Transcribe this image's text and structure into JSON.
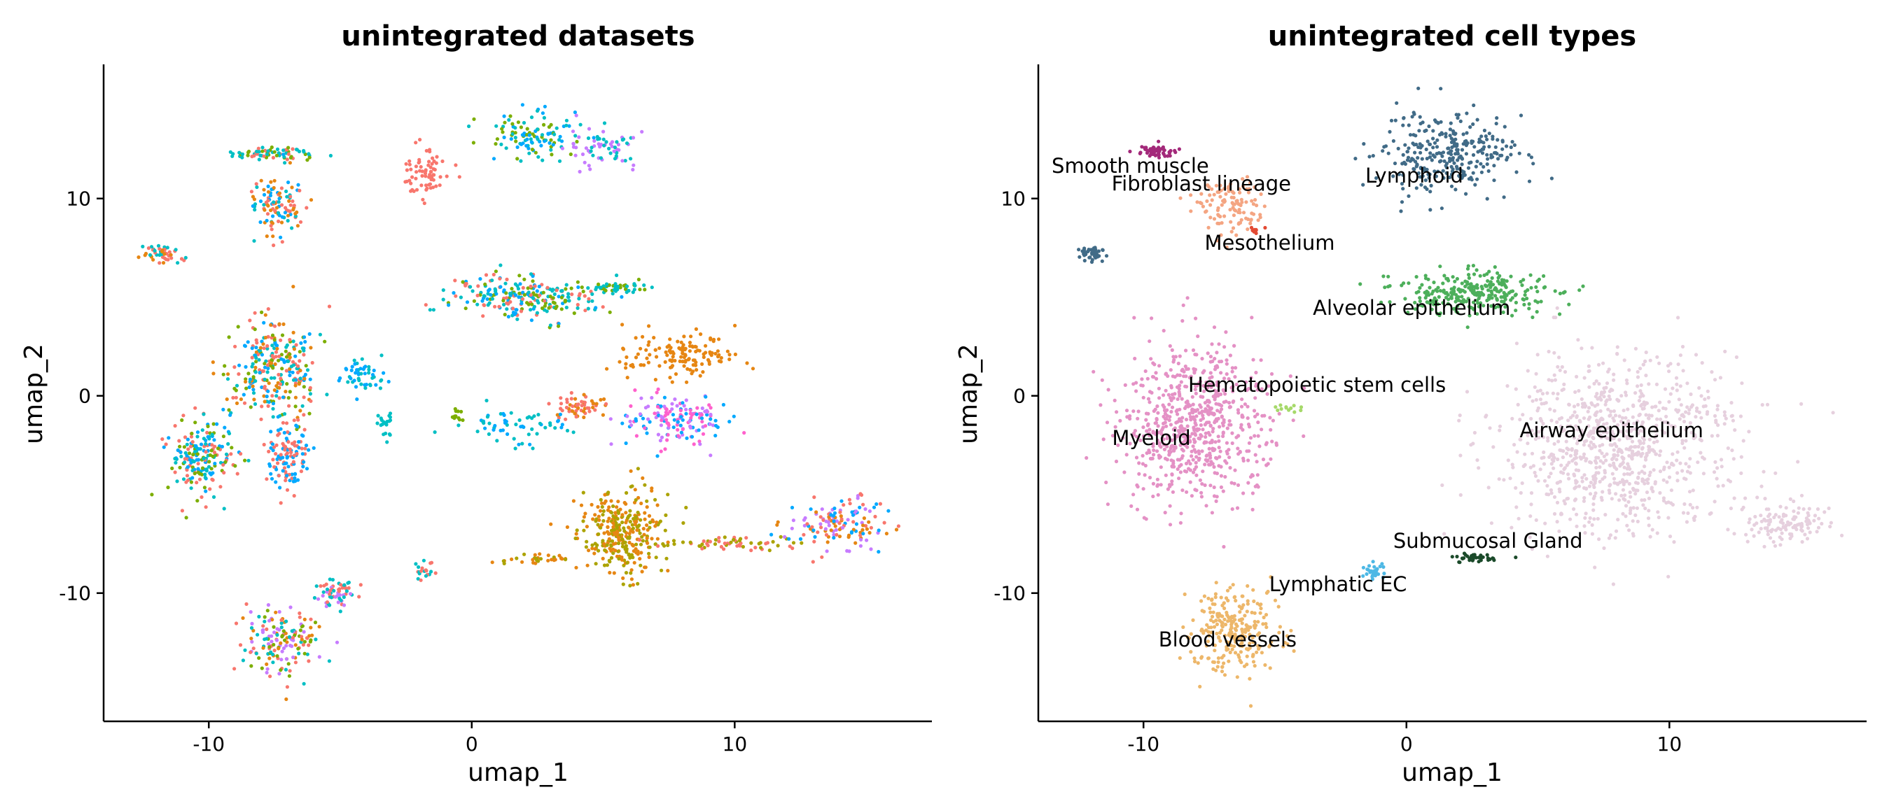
{
  "chart_data": [
    {
      "type": "scatter",
      "title": "unintegrated datasets",
      "xlabel": "umap_1",
      "ylabel": "umap_2",
      "xlim": [
        -14,
        17.5
      ],
      "ylim": [
        -16.5,
        16.8
      ],
      "x_ticks": [
        -10,
        0,
        10
      ],
      "y_ticks": [
        -10,
        0,
        10
      ],
      "x_tick_labels": [
        "-10",
        "0",
        "10"
      ],
      "y_tick_labels": [
        "-10",
        "0",
        "10"
      ],
      "grid": false,
      "legend": "none",
      "palette": [
        "#F8766D",
        "#00BFC4",
        "#00A9FF",
        "#7CAE00",
        "#C77CFF",
        "#E68613",
        "#ABA300",
        "#FF61CC",
        "#0CB702",
        "#00B8E7"
      ],
      "clusters": [
        {
          "x": -7.5,
          "y": 12.3,
          "sx": 1.1,
          "sy": 0.25,
          "n": 70,
          "colors": [
            0,
            3,
            1
          ]
        },
        {
          "x": -7.4,
          "y": 9.8,
          "sx": 0.8,
          "sy": 1.2,
          "n": 110,
          "colors": [
            2,
            1,
            5,
            0
          ]
        },
        {
          "x": -11.8,
          "y": 7.2,
          "sx": 0.5,
          "sy": 0.3,
          "n": 45,
          "colors": [
            0,
            5,
            1
          ]
        },
        {
          "x": 2.5,
          "y": 13.2,
          "sx": 1.2,
          "sy": 0.8,
          "n": 110,
          "colors": [
            1,
            3,
            2
          ]
        },
        {
          "x": 4.8,
          "y": 12.5,
          "sx": 1.2,
          "sy": 0.7,
          "n": 70,
          "colors": [
            4,
            1
          ]
        },
        {
          "x": -1.8,
          "y": 11.3,
          "sx": 0.6,
          "sy": 0.8,
          "n": 70,
          "colors": [
            0
          ]
        },
        {
          "x": 2.0,
          "y": 5.0,
          "sx": 2.0,
          "sy": 0.8,
          "n": 240,
          "colors": [
            2,
            0,
            1,
            3
          ]
        },
        {
          "x": 5.3,
          "y": 5.5,
          "sx": 1.2,
          "sy": 0.2,
          "n": 50,
          "colors": [
            1,
            3
          ]
        },
        {
          "x": -7.5,
          "y": 1.5,
          "sx": 1.2,
          "sy": 1.8,
          "n": 280,
          "colors": [
            2,
            0,
            1,
            3,
            5
          ]
        },
        {
          "x": -10.3,
          "y": -3.2,
          "sx": 0.9,
          "sy": 1.4,
          "n": 200,
          "colors": [
            3,
            2,
            1,
            0
          ]
        },
        {
          "x": -7.0,
          "y": -3.0,
          "sx": 0.6,
          "sy": 1.2,
          "n": 120,
          "colors": [
            0,
            2
          ]
        },
        {
          "x": -4.2,
          "y": 1.0,
          "sx": 0.6,
          "sy": 0.6,
          "n": 50,
          "colors": [
            2,
            1
          ]
        },
        {
          "x": -3.3,
          "y": -1.5,
          "sx": 0.2,
          "sy": 0.6,
          "n": 20,
          "colors": [
            1
          ]
        },
        {
          "x": 8.0,
          "y": 2.0,
          "sx": 1.6,
          "sy": 0.8,
          "n": 140,
          "colors": [
            5
          ]
        },
        {
          "x": 4.0,
          "y": -0.5,
          "sx": 0.8,
          "sy": 0.4,
          "n": 60,
          "colors": [
            5,
            0
          ]
        },
        {
          "x": 7.8,
          "y": -1.2,
          "sx": 1.6,
          "sy": 1.0,
          "n": 160,
          "colors": [
            4,
            7,
            2
          ]
        },
        {
          "x": 5.7,
          "y": -7.0,
          "sx": 1.2,
          "sy": 1.5,
          "n": 320,
          "colors": [
            6,
            5
          ]
        },
        {
          "x": 10.0,
          "y": -7.5,
          "sx": 1.8,
          "sy": 0.3,
          "n": 60,
          "colors": [
            6,
            0
          ]
        },
        {
          "x": 14.0,
          "y": -6.5,
          "sx": 1.2,
          "sy": 0.9,
          "n": 140,
          "colors": [
            0,
            2,
            5,
            4
          ]
        },
        {
          "x": 2.5,
          "y": -8.3,
          "sx": 1.0,
          "sy": 0.2,
          "n": 30,
          "colors": [
            5,
            6
          ]
        },
        {
          "x": -1.8,
          "y": -8.8,
          "sx": 0.3,
          "sy": 0.3,
          "n": 20,
          "colors": [
            1,
            0
          ]
        },
        {
          "x": -7.2,
          "y": -12.5,
          "sx": 1.0,
          "sy": 1.2,
          "n": 160,
          "colors": [
            0,
            3,
            5,
            4,
            1
          ]
        },
        {
          "x": -5.2,
          "y": -10.0,
          "sx": 0.5,
          "sy": 0.5,
          "n": 60,
          "colors": [
            1,
            0,
            4
          ]
        },
        {
          "x": 1.5,
          "y": -1.5,
          "sx": 1.5,
          "sy": 0.6,
          "n": 60,
          "colors": [
            1,
            2
          ]
        },
        {
          "x": -0.5,
          "y": -1.0,
          "sx": 0.2,
          "sy": 0.3,
          "n": 12,
          "colors": [
            3
          ]
        }
      ]
    },
    {
      "type": "scatter",
      "title": "unintegrated cell types",
      "xlabel": "umap_1",
      "ylabel": "umap_2",
      "xlim": [
        -14,
        17.5
      ],
      "ylim": [
        -16.5,
        16.8
      ],
      "x_ticks": [
        -10,
        0,
        10
      ],
      "y_ticks": [
        -10,
        0,
        10
      ],
      "x_tick_labels": [
        "-10",
        "0",
        "10"
      ],
      "y_tick_labels": [
        "-10",
        "0",
        "10"
      ],
      "grid": false,
      "legend": "none",
      "clusters": [
        {
          "name": "Smooth muscle",
          "color": "#A3297A",
          "x": -9.5,
          "y": 12.4,
          "sx": 0.6,
          "sy": 0.2,
          "n": 60
        },
        {
          "name": "Fibroblast lineage",
          "color": "#F4A582",
          "x": -6.8,
          "y": 9.6,
          "sx": 0.8,
          "sy": 1.0,
          "n": 110
        },
        {
          "name": "Mesothelium",
          "color": "#E34A33",
          "x": -5.8,
          "y": 8.4,
          "sx": 0.15,
          "sy": 0.12,
          "n": 12
        },
        {
          "name": "Lymphoid",
          "color": "#416B87",
          "x": 1.5,
          "y": 12.3,
          "sx": 2.0,
          "sy": 1.5,
          "n": 300
        },
        {
          "name": "Lymphoid",
          "color": "#416B87",
          "x": -12.0,
          "y": 7.2,
          "sx": 0.5,
          "sy": 0.3,
          "n": 40
        },
        {
          "name": "Alveolar epithelium",
          "color": "#4DAF5B",
          "x": 2.5,
          "y": 5.2,
          "sx": 2.2,
          "sy": 0.8,
          "n": 280
        },
        {
          "name": "Hematopoietic stem cells",
          "color": "#A6D96A",
          "x": -4.5,
          "y": -0.6,
          "sx": 0.4,
          "sy": 0.2,
          "n": 12
        },
        {
          "name": "Myeloid",
          "color": "#E491C5",
          "x": -8.0,
          "y": -1.5,
          "sx": 2.0,
          "sy": 2.8,
          "n": 700
        },
        {
          "name": "Airway epithelium",
          "color": "#E6D0DE",
          "x": 8.0,
          "y": -2.5,
          "sx": 3.2,
          "sy": 3.2,
          "n": 900
        },
        {
          "name": "Airway epithelium",
          "color": "#E6D0DE",
          "x": 14.5,
          "y": -6.5,
          "sx": 1.2,
          "sy": 0.8,
          "n": 120
        },
        {
          "name": "Submucosal Gland",
          "color": "#1B4A2A",
          "x": 2.5,
          "y": -8.2,
          "sx": 0.8,
          "sy": 0.15,
          "n": 40
        },
        {
          "name": "Lymphatic EC",
          "color": "#4DB8E5",
          "x": -1.2,
          "y": -8.9,
          "sx": 0.3,
          "sy": 0.3,
          "n": 30
        },
        {
          "name": "Blood vessels",
          "color": "#EDB76A",
          "x": -6.5,
          "y": -12.0,
          "sx": 1.2,
          "sy": 1.6,
          "n": 260
        }
      ],
      "labels": [
        {
          "text": "Smooth muscle",
          "x": -10.5,
          "y": 11.3
        },
        {
          "text": "Fibroblast lineage",
          "x": -7.8,
          "y": 10.4
        },
        {
          "text": "Lymphoid",
          "x": 0.3,
          "y": 10.8
        },
        {
          "text": "Mesothelium",
          "x": -5.2,
          "y": 7.4
        },
        {
          "text": "Alveolar epithelium",
          "x": 0.2,
          "y": 4.1
        },
        {
          "text": "Hematopoietic stem cells",
          "x": -3.4,
          "y": 0.2
        },
        {
          "text": "Airway epithelium",
          "x": 7.8,
          "y": -2.1
        },
        {
          "text": "Myeloid",
          "x": -9.7,
          "y": -2.5
        },
        {
          "text": "Submucosal Gland",
          "x": 3.1,
          "y": -7.7
        },
        {
          "text": "Lymphatic EC",
          "x": -2.6,
          "y": -9.9
        },
        {
          "text": "Blood vessels",
          "x": -6.8,
          "y": -12.7
        }
      ]
    }
  ]
}
